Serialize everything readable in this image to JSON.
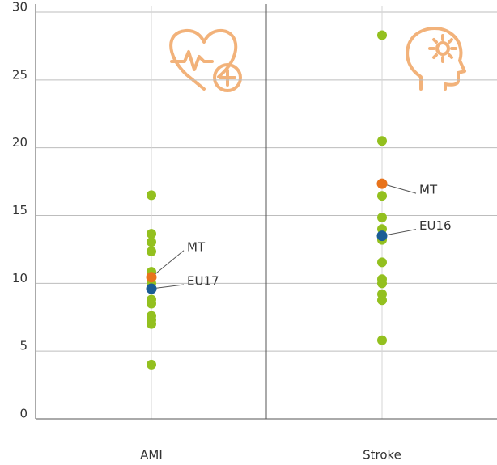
{
  "chart_data": {
    "type": "strip",
    "categories": [
      "AMI",
      "Stroke"
    ],
    "ylim": [
      0,
      30
    ],
    "yticks": [
      0,
      5,
      10,
      15,
      20,
      25,
      30
    ],
    "grid": true,
    "series": [
      {
        "color": "#93c01f",
        "values": [
          [
            16.5,
            13.65,
            13.05,
            12.35,
            10.85,
            10.0,
            8.8,
            8.5,
            7.6,
            7.3,
            7.0,
            4.0
          ],
          [
            28.3,
            20.5,
            16.45,
            14.85,
            14.0,
            13.2,
            11.55,
            10.3,
            10.0,
            9.2,
            8.75,
            5.8
          ]
        ]
      },
      {
        "name": "MT",
        "color": "#e8731c",
        "values": [
          10.45,
          17.35
        ]
      },
      {
        "name": "EU17",
        "color": "#1a5d95",
        "values": [
          9.6,
          null
        ]
      },
      {
        "name": "EU16",
        "color": "#1a5d95",
        "values": [
          null,
          13.5
        ]
      }
    ]
  }
}
